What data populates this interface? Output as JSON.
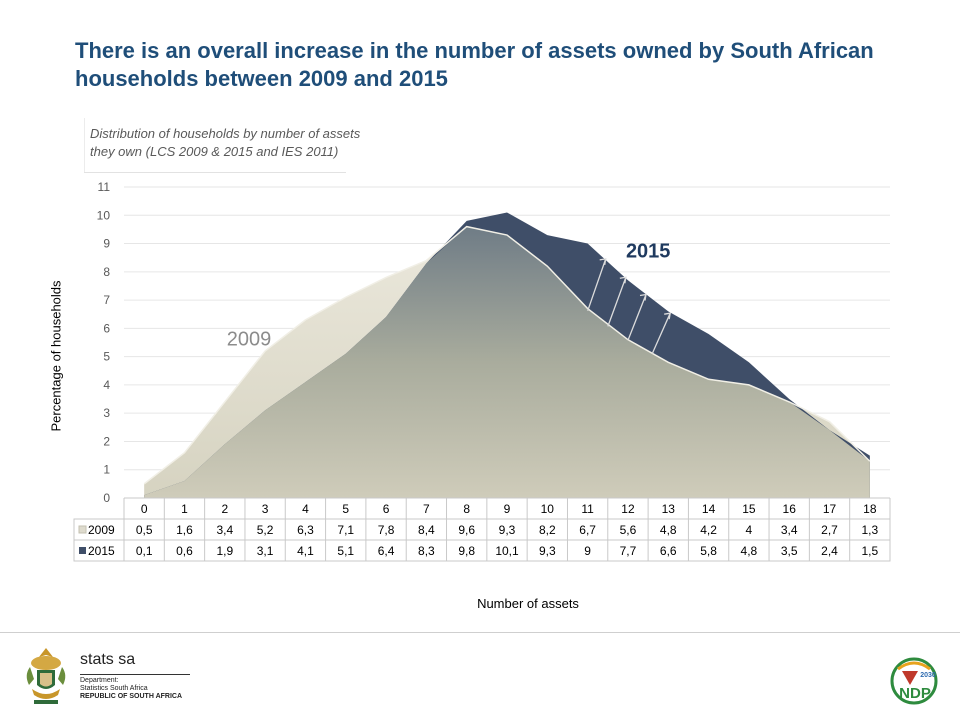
{
  "slide": {
    "headline": "There is an overall increase in the number of assets owned by South African households between 2009 and 2015",
    "subtitle_line1": "Distribution of households by number of assets",
    "subtitle_line2": "they own  (LCS 2009 & 2015 and IES 2011)"
  },
  "footer": {
    "brand_name": "stats sa",
    "brand_line1": "Department:",
    "brand_line2": "Statistics South Africa",
    "brand_line3": "REPUBLIC OF SOUTH AFRICA",
    "ndp_logo": "NDP",
    "ndp_year": "2030"
  },
  "chart_data": {
    "type": "area",
    "ylabel": "Percentage of households",
    "xlabel": "Number of assets",
    "ylim": [
      0,
      11
    ],
    "yticks": [
      0,
      1,
      2,
      3,
      4,
      5,
      6,
      7,
      8,
      9,
      10,
      11
    ],
    "grid": true,
    "categories": [
      "0",
      "1",
      "2",
      "3",
      "4",
      "5",
      "6",
      "7",
      "8",
      "9",
      "10",
      "11",
      "12",
      "13",
      "14",
      "15",
      "16",
      "17",
      "18"
    ],
    "series": [
      {
        "name": "2009",
        "color": "#dedbcd",
        "labels": [
          "0,5",
          "1,6",
          "3,4",
          "5,2",
          "6,3",
          "7,1",
          "7,8",
          "8,4",
          "9,6",
          "9,3",
          "8,2",
          "6,7",
          "5,6",
          "4,8",
          "4,2",
          "4",
          "3,4",
          "2,7",
          "1,3"
        ],
        "values": [
          0.5,
          1.6,
          3.4,
          5.2,
          6.3,
          7.1,
          7.8,
          8.4,
          9.6,
          9.3,
          8.2,
          6.7,
          5.6,
          4.8,
          4.2,
          4,
          3.4,
          2.7,
          1.3
        ]
      },
      {
        "name": "2015",
        "color": "#3f4e68",
        "labels": [
          "0,1",
          "0,6",
          "1,9",
          "3,1",
          "4,1",
          "5,1",
          "6,4",
          "8,3",
          "9,8",
          "10,1",
          "9,3",
          "9",
          "7,7",
          "6,6",
          "5,8",
          "4,8",
          "3,5",
          "2,4",
          "1,5"
        ],
        "values": [
          0.1,
          0.6,
          1.9,
          3.1,
          4.1,
          5.1,
          6.4,
          8.3,
          9.8,
          10.1,
          9.3,
          9,
          7.7,
          6.6,
          5.8,
          4.8,
          3.5,
          2.4,
          1.5
        ]
      }
    ],
    "annotations": [
      "2009",
      "2015"
    ]
  }
}
